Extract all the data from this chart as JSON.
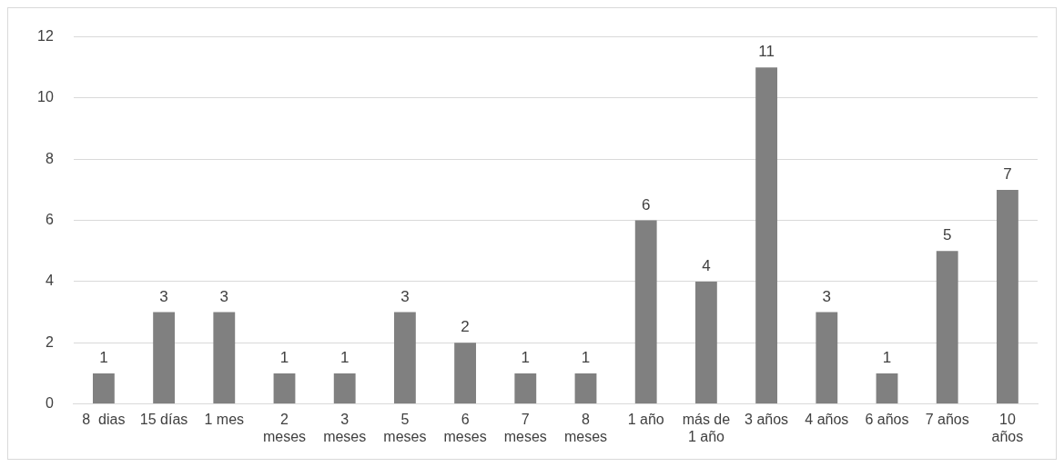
{
  "chart_data": {
    "type": "bar",
    "categories": [
      "8  dias",
      "15 días",
      "1 mes",
      "2 meses",
      "3 meses",
      "5 meses",
      "6 meses",
      "7 meses",
      "8 meses",
      "1 año",
      "más de 1 año",
      "3 años",
      "4 años",
      "6 años",
      "7 años",
      "10 años"
    ],
    "values": [
      1,
      3,
      3,
      1,
      1,
      3,
      2,
      1,
      1,
      6,
      4,
      11,
      3,
      1,
      5,
      7
    ],
    "color": "#808080",
    "ylim": [
      0,
      12
    ],
    "yticks": [
      0,
      2,
      4,
      6,
      8,
      10,
      12
    ],
    "grid": "y",
    "data_labels": true,
    "legend": false
  }
}
